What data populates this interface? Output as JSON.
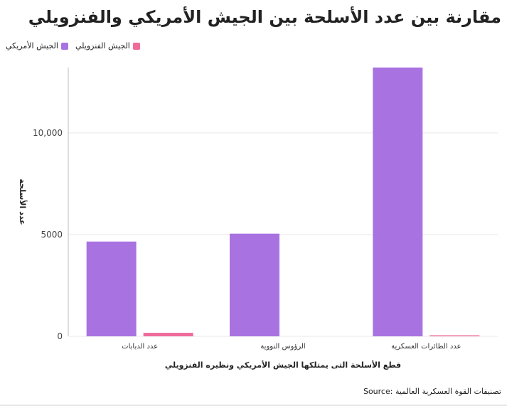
{
  "title": "مقارنة بين عدد الأسلحة بين الجيش الأمريكي والفنزويلي",
  "source": "تصنيفات القوة العسكرية العالمية :Source",
  "colors": {
    "us": "#a972e1",
    "venezuela": "#ee6b9a",
    "grid": "#e9e9e9",
    "axis": "#bdbdbd"
  },
  "chart_data": {
    "type": "bar",
    "categories": [
      "عدد الدبابات",
      "الرؤوس النووية",
      "عدد الطائرات العسكرية"
    ],
    "series": [
      {
        "name": "الجيش الأمريكي",
        "values": [
          4657,
          5044,
          13209
        ]
      },
      {
        "name": "الجيش الفنزويلي",
        "values": [
          172,
          0,
          50
        ]
      }
    ],
    "legend": [
      "الجيش الفنزويلي",
      "الجيش الأمريكي"
    ],
    "xlabel": "قطع الأسلحة التى يمتلكها الجيش الأمريكي ونظيره الفنزويلي",
    "ylabel": "عدد الأسلحة",
    "yticks": [
      {
        "value": 0,
        "label": "0"
      },
      {
        "value": 5000,
        "label": "5000"
      },
      {
        "value": 10000,
        "label": "10,000"
      }
    ],
    "ylim": [
      0,
      13209
    ],
    "grid": true,
    "legend_position": "top-left"
  }
}
